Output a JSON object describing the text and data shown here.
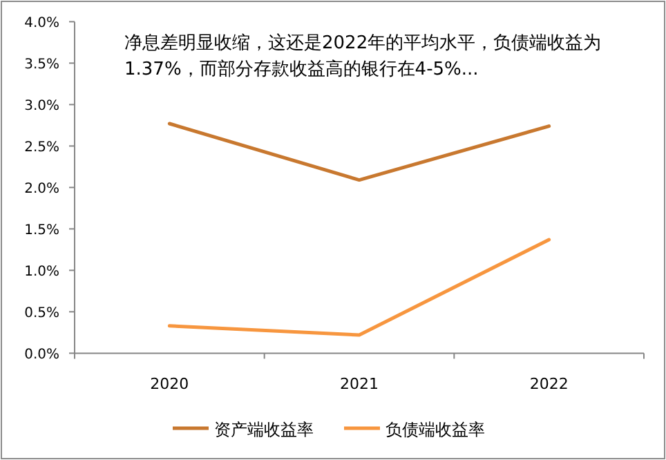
{
  "chart_data": {
    "type": "line",
    "title": "净息差明显收缩，这还是2022年的平均水平，负债端收益为1.37%，而部分存款收益高的银行在4-5%...",
    "categories": [
      "2020",
      "2021",
      "2022"
    ],
    "series": [
      {
        "name": "资产端收益率",
        "color": "#c8782f",
        "values": [
          2.77,
          2.09,
          2.74
        ]
      },
      {
        "name": "负债端收益率",
        "color": "#f7963f",
        "values": [
          0.33,
          0.22,
          1.37
        ]
      }
    ],
    "ylim": [
      0,
      4
    ],
    "yticks": [
      {
        "value": 0,
        "label": "0.0%"
      },
      {
        "value": 0.5,
        "label": "0.5%"
      },
      {
        "value": 1,
        "label": "1.0%"
      },
      {
        "value": 1.5,
        "label": "1.5%"
      },
      {
        "value": 2,
        "label": "2.0%"
      },
      {
        "value": 2.5,
        "label": "2.5%"
      },
      {
        "value": 3,
        "label": "3.0%"
      },
      {
        "value": 3.5,
        "label": "3.5%"
      },
      {
        "value": 4,
        "label": "4.0%"
      }
    ],
    "grid": false,
    "legend": "bottom",
    "marker": "none",
    "line_style": "solid"
  }
}
